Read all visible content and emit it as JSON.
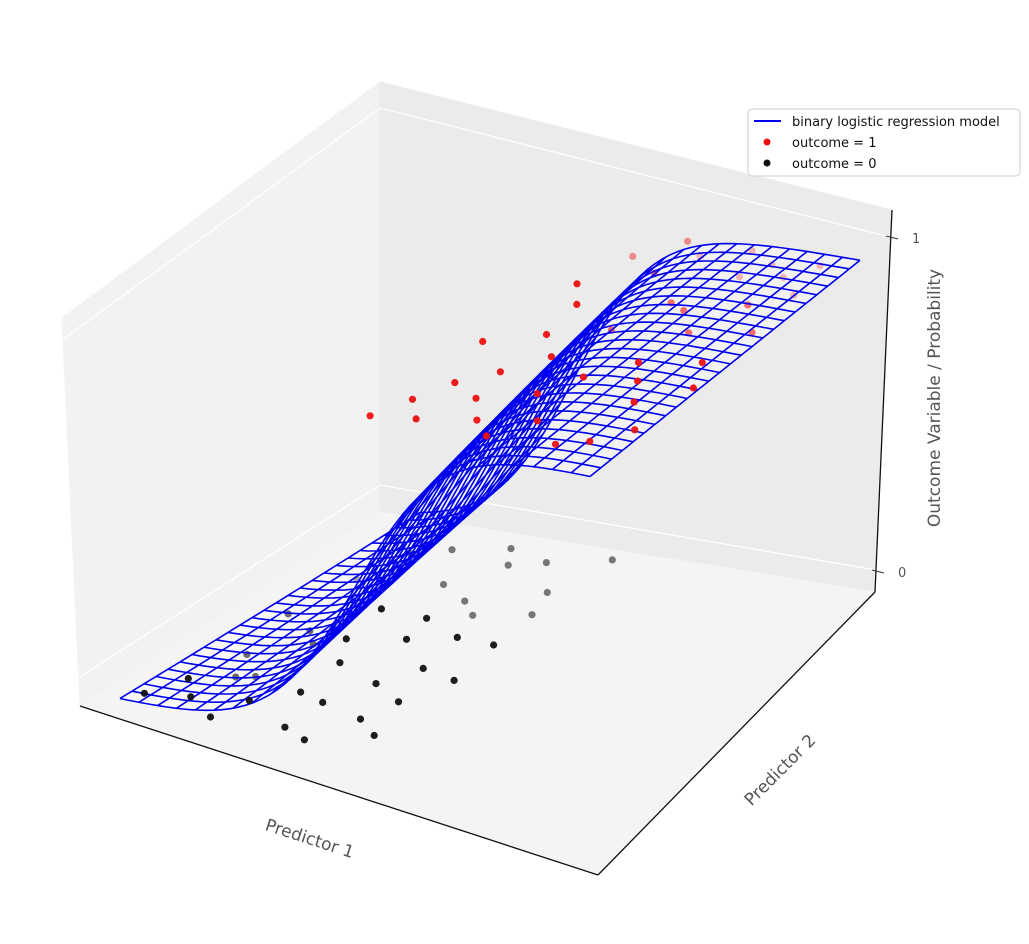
{
  "chart_data": {
    "type": "3d-surface-scatter",
    "title": "",
    "xlabel": "Predictor 1",
    "ylabel": "Predictor 2",
    "zlabel": "Outcome Variable / Probability",
    "zticks": [
      "0",
      "1"
    ],
    "grid": true,
    "legend": {
      "position": "top-right",
      "entries": [
        {
          "label": "binary logistic regression model",
          "marker": "line",
          "color": "#0000ee"
        },
        {
          "label": "outcome = 1",
          "marker": "dot",
          "color": "#ee1111"
        },
        {
          "label": "outcome = 0",
          "marker": "dot",
          "color": "#111111"
        }
      ]
    },
    "surface": {
      "name": "binary logistic regression model",
      "color": "#0000ee",
      "x_range": [
        0,
        1
      ],
      "y_range": [
        0,
        1
      ],
      "grid_size": 25,
      "logistic_midpoint": 0.5,
      "logistic_steepness": 12
    },
    "series": [
      {
        "name": "outcome = 1",
        "color": "#ee1111",
        "z": 1,
        "points": [
          [
            0.52,
            0.02
          ],
          [
            0.55,
            0.12
          ],
          [
            0.58,
            0.22
          ],
          [
            0.6,
            0.05
          ],
          [
            0.63,
            0.3
          ],
          [
            0.65,
            0.18
          ],
          [
            0.68,
            0.4
          ],
          [
            0.7,
            0.1
          ],
          [
            0.72,
            0.55
          ],
          [
            0.74,
            0.25
          ],
          [
            0.76,
            0.7
          ],
          [
            0.78,
            0.35
          ],
          [
            0.8,
            0.15
          ],
          [
            0.82,
            0.85
          ],
          [
            0.84,
            0.45
          ],
          [
            0.86,
            0.6
          ],
          [
            0.88,
            0.08
          ],
          [
            0.9,
            0.75
          ],
          [
            0.92,
            0.3
          ],
          [
            0.94,
            0.95
          ],
          [
            0.95,
            0.5
          ],
          [
            0.97,
            0.65
          ],
          [
            0.98,
            0.2
          ],
          [
            0.6,
            0.62
          ],
          [
            0.66,
            0.8
          ],
          [
            0.7,
            0.9
          ],
          [
            0.78,
            0.96
          ],
          [
            0.85,
            0.92
          ],
          [
            0.9,
            0.88
          ],
          [
            0.96,
            0.82
          ],
          [
            0.99,
            0.4
          ],
          [
            0.62,
            0.48
          ],
          [
            0.75,
            0.05
          ],
          [
            0.55,
            0.7
          ],
          [
            0.58,
            0.85
          ],
          [
            0.64,
            0.95
          ],
          [
            0.8,
            0.68
          ],
          [
            0.88,
            0.38
          ],
          [
            0.93,
            0.12
          ],
          [
            0.53,
            0.4
          ]
        ]
      },
      {
        "name": "outcome = 0",
        "color": "#111111",
        "z": 0,
        "points": [
          [
            0.02,
            0.05
          ],
          [
            0.05,
            0.15
          ],
          [
            0.08,
            0.3
          ],
          [
            0.1,
            0.08
          ],
          [
            0.12,
            0.45
          ],
          [
            0.15,
            0.22
          ],
          [
            0.18,
            0.6
          ],
          [
            0.2,
            0.12
          ],
          [
            0.22,
            0.75
          ],
          [
            0.25,
            0.35
          ],
          [
            0.28,
            0.88
          ],
          [
            0.3,
            0.5
          ],
          [
            0.32,
            0.18
          ],
          [
            0.35,
            0.65
          ],
          [
            0.38,
            0.02
          ],
          [
            0.4,
            0.4
          ],
          [
            0.42,
            0.8
          ],
          [
            0.44,
            0.25
          ],
          [
            0.46,
            0.55
          ],
          [
            0.48,
            0.1
          ],
          [
            0.06,
            0.7
          ],
          [
            0.14,
            0.9
          ],
          [
            0.24,
            0.95
          ],
          [
            0.34,
            0.92
          ],
          [
            0.16,
            0.4
          ],
          [
            0.26,
            0.2
          ],
          [
            0.36,
            0.3
          ],
          [
            0.45,
            0.7
          ],
          [
            0.04,
            0.5
          ],
          [
            0.3,
            0.7
          ],
          [
            0.42,
            0.15
          ],
          [
            0.2,
            0.45
          ],
          [
            0.08,
            0.85
          ],
          [
            0.38,
            0.55
          ],
          [
            0.12,
            0.2
          ],
          [
            0.48,
            0.38
          ],
          [
            0.32,
            0.05
          ],
          [
            0.45,
            0.98
          ],
          [
            0.18,
            0.02
          ],
          [
            0.28,
            0.6
          ]
        ]
      }
    ]
  }
}
